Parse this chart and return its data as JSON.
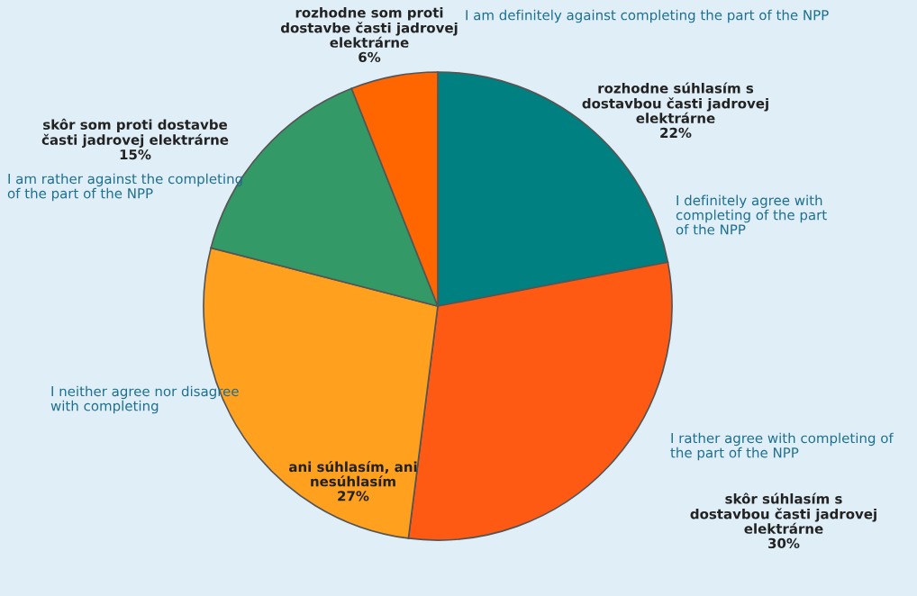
{
  "chart_data": {
    "type": "pie",
    "categories": [
      "rozhodne súhlasím s\ndostavbou časti jadrovej\nelektrárne",
      "skôr súhlasím s\ndostavbou časti jadrovej\nelektrárne",
      "ani súhlasím, ani\nnesúhlasím",
      "skôr som proti dostavbe\nčasti jadrovej elektrárne",
      "rozhodne som proti\ndostavbe časti jadrovej\nelektrárne"
    ],
    "values": [
      22,
      30,
      27,
      15,
      6
    ],
    "value_labels": [
      "22%",
      "30%",
      "27%",
      "15%",
      "6%"
    ],
    "colors": [
      "#008080",
      "#ff5a14",
      "#ffa01e",
      "#339966",
      "#ff6600"
    ],
    "annotations": [
      "I definitely agree with\ncompleting of the part\nof the NPP",
      "I rather agree with completing of\nthe part of the NPP",
      "I neither agree nor disagree\nwith completing",
      "I am rather against the completing\nof the part of the NPP",
      "I am definitely against completing the part of the NPP"
    ]
  }
}
